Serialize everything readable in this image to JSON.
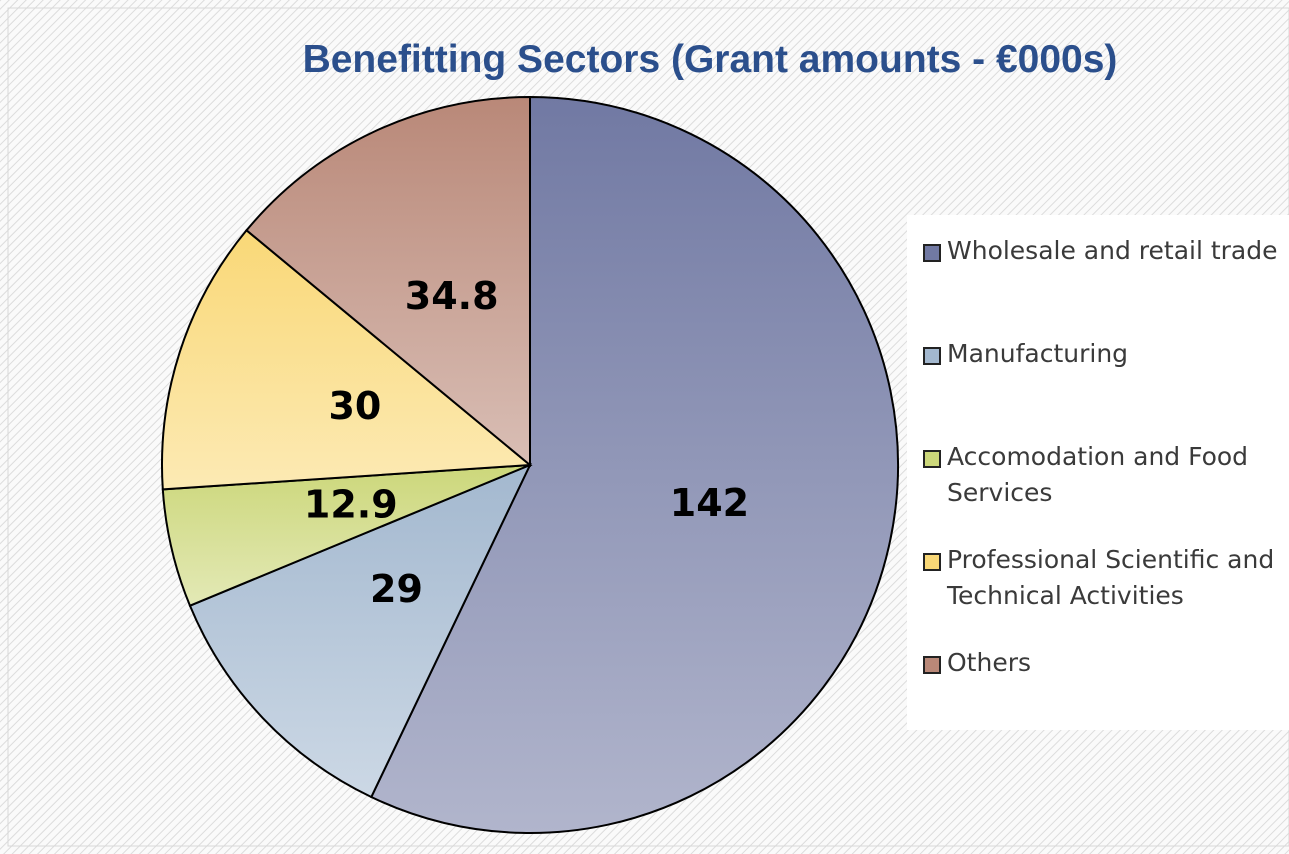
{
  "chart_data": {
    "type": "pie",
    "title": "Benefitting Sectors (Grant amounts - €000s)",
    "categories": [
      "Wholesale and retail trade",
      "Manufacturing",
      "Accomodation and Food Services",
      "Professional Scientific and Technical Activities",
      "Others"
    ],
    "values": [
      142,
      29,
      12.9,
      30,
      34.8
    ],
    "colors": [
      "#7179a3",
      "#a3b8cf",
      "#ccd77a",
      "#f9d877",
      "#b98878"
    ],
    "legend": "right"
  }
}
